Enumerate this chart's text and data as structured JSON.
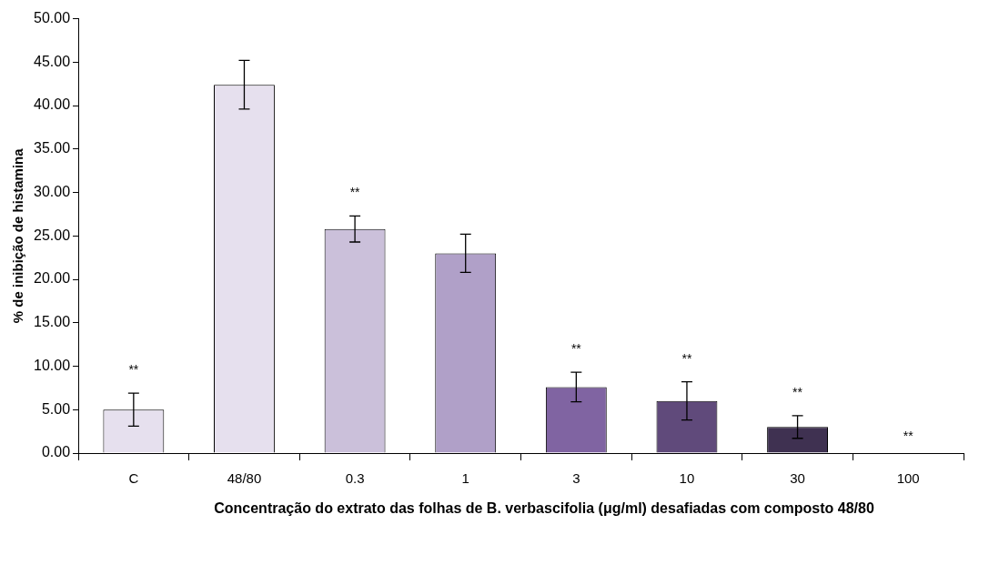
{
  "chart_data": {
    "type": "bar",
    "xlabel": "Concentração do extrato das folhas de B. verbascifolia (μg/ml) desafiadas com composto 48/80",
    "ylabel": "% de inibição de histamina",
    "categories": [
      "C",
      "48/80",
      "0.3",
      "1",
      "3",
      "10",
      "30",
      "100"
    ],
    "values": [
      5.0,
      42.4,
      25.8,
      23.0,
      7.6,
      6.0,
      3.0,
      0
    ],
    "colors": [
      "#e6e0ee",
      "#e6e0ee",
      "#cbc0da",
      "#b0a0c8",
      "#8064a2",
      "#604a7b",
      "#3f3151",
      "#3f3151"
    ],
    "errors": [
      1.9,
      2.8,
      1.5,
      2.2,
      1.7,
      2.2,
      1.3,
      null
    ],
    "ylim": [
      0,
      50
    ],
    "yticks": [
      {
        "value": 0,
        "label": "0.00"
      },
      {
        "value": 5,
        "label": "5.00"
      },
      {
        "value": 10,
        "label": "10.00"
      },
      {
        "value": 15,
        "label": "15.00"
      },
      {
        "value": 20,
        "label": "20.00"
      },
      {
        "value": 25,
        "label": "25.00"
      },
      {
        "value": 30,
        "label": "30.00"
      },
      {
        "value": 35,
        "label": "35.00"
      },
      {
        "value": 40,
        "label": "40.00"
      },
      {
        "value": 45,
        "label": "45.00"
      },
      {
        "value": 50,
        "label": "50.00"
      }
    ],
    "annotations": [
      {
        "text": "**",
        "x": "C",
        "y": 5.0
      },
      {
        "text": "**",
        "x": "0.3",
        "y": 25.8
      },
      {
        "text": "**",
        "x": "3",
        "y": 7.6
      },
      {
        "text": "**",
        "x": "10",
        "y": 6.0
      },
      {
        "text": "**",
        "x": "30",
        "y": 3.0
      },
      {
        "text": "**",
        "x": "100",
        "y": 0
      }
    ],
    "grid": false,
    "legend": false
  }
}
